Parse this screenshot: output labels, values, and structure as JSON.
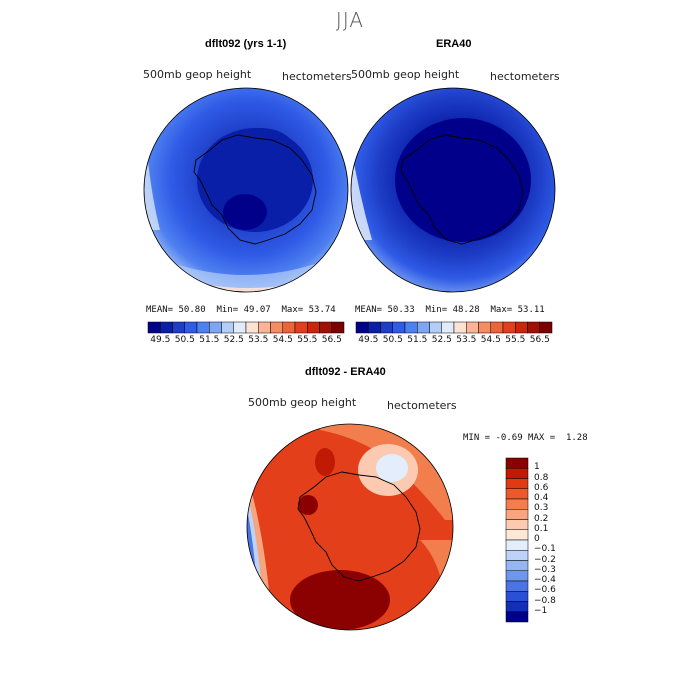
{
  "title": "JJA",
  "panels": [
    {
      "title": "dflt092 (yrs 1-1)",
      "variable": "500mb geop height",
      "units": "hectometers",
      "mean_label": "MEAN=",
      "mean": "50.80",
      "min_label": "Min=",
      "min": "49.07",
      "max_label": "Max=",
      "max": "53.74"
    },
    {
      "title": "ERA40",
      "variable": "500mb geop height",
      "units": "hectometers",
      "mean_label": "MEAN=",
      "mean": "50.33",
      "min_label": "Min=",
      "min": "48.28",
      "max_label": "Max=",
      "max": "53.11"
    }
  ],
  "colorbar": {
    "ticks": [
      "49.5",
      "50.5",
      "51.5",
      "52.5",
      "53.5",
      "54.5",
      "55.5",
      "56.5"
    ],
    "colors": [
      "#00008b",
      "#0a1fa8",
      "#1e3ec7",
      "#2f5be6",
      "#4f80f0",
      "#7ea6f5",
      "#b2cdf8",
      "#e1ebfb",
      "#fde3d4",
      "#f9b596",
      "#f48c64",
      "#ed6438",
      "#e23f1a",
      "#c9260c",
      "#a01006",
      "#7a0000"
    ]
  },
  "difference": {
    "title": "dflt092 - ERA40",
    "variable": "500mb geop height",
    "units": "hectometers",
    "min_label": "MIN =",
    "min": "-0.69",
    "max_label": "MAX =",
    "max": "1.28",
    "legend_labels": [
      "1",
      "0.8",
      "0.6",
      "0.4",
      "0.3",
      "0.2",
      "0.1",
      "0",
      "−0.1",
      "−0.2",
      "−0.3",
      "−0.4",
      "−0.6",
      "−0.8",
      "−1"
    ],
    "legend_colors": [
      "#8b0000",
      "#c01a04",
      "#e03a12",
      "#ec5a2c",
      "#f27e4e",
      "#f7a57f",
      "#fbcab0",
      "#fde8d8",
      "#e3edfb",
      "#bcd2f7",
      "#95b6f3",
      "#6f96ee",
      "#4a74e6",
      "#2a50d6",
      "#1030b8",
      "#00008b"
    ]
  }
}
